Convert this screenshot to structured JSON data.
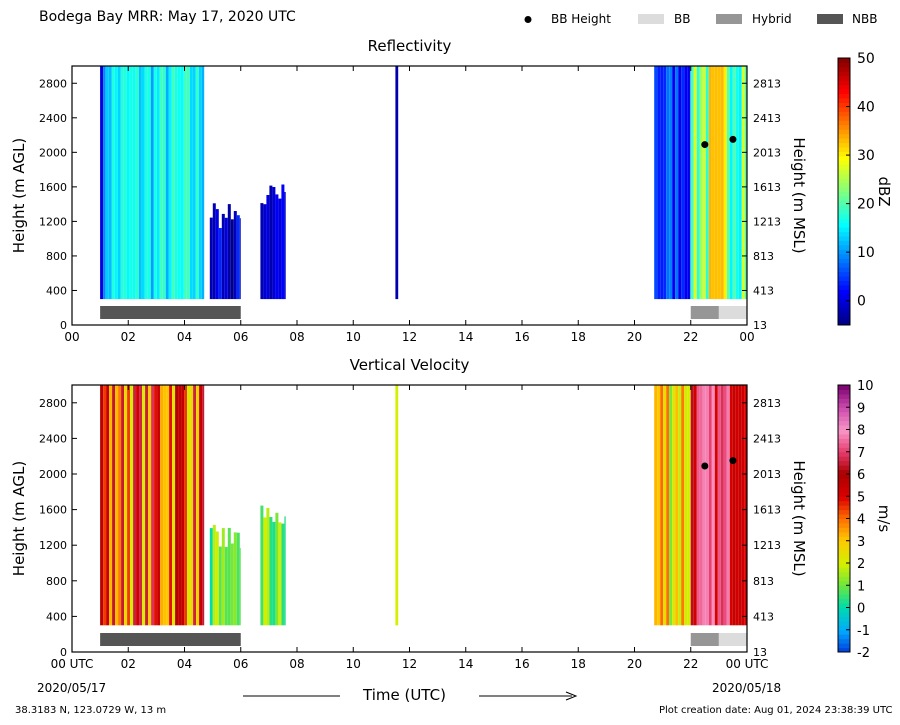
{
  "header": {
    "title": "Bodega Bay MRR:  May 17, 2020 UTC",
    "legend": [
      {
        "label": "BB Height",
        "marker": "dot",
        "color": "#000000"
      },
      {
        "label": "BB",
        "marker": "box",
        "color": "#dcdcdc"
      },
      {
        "label": "Hybrid",
        "marker": "box",
        "color": "#969696"
      },
      {
        "label": "NBB",
        "marker": "box",
        "color": "#555555"
      }
    ]
  },
  "chart_data": [
    {
      "type": "heatmap",
      "title": "Reflectivity",
      "xlabel": "",
      "ylabel": "Height (m AGL)",
      "ylabel_right": "Height (m MSL)",
      "x_ticks": [
        "00",
        "02",
        "04",
        "06",
        "08",
        "10",
        "12",
        "14",
        "16",
        "18",
        "20",
        "22",
        "00"
      ],
      "y_ticks": [
        "0",
        "400",
        "800",
        "1200",
        "1600",
        "2000",
        "2400",
        "2800"
      ],
      "y_ticks_right": [
        "13",
        "413",
        "813",
        "1213",
        "1613",
        "2013",
        "2413",
        "2813"
      ],
      "xlim": [
        0,
        24
      ],
      "ylim": [
        0,
        3000
      ],
      "colorbar": {
        "label": "dBZ",
        "range": [
          -5,
          50
        ],
        "ticks": [
          "0",
          "10",
          "20",
          "30",
          "40",
          "50"
        ]
      },
      "bb_height_points": [
        {
          "x": 22.5,
          "y": 2090
        },
        {
          "x": 23.5,
          "y": 2150
        }
      ],
      "bb_type_segments": [
        {
          "type": "NBB",
          "start": 1.0,
          "end": 6.0
        },
        {
          "type": "Hybrid",
          "start": 22.0,
          "end": 23.0
        },
        {
          "type": "BB",
          "start": 23.0,
          "end": 24.0
        }
      ],
      "echo_regions": [
        {
          "start": 1.0,
          "end": 1.2,
          "top": 3000,
          "level": "0 to 10"
        },
        {
          "start": 1.2,
          "end": 4.7,
          "top": 3000,
          "level": "10 to 20"
        },
        {
          "start": 4.9,
          "end": 6.0,
          "top": 1300,
          "level": "-5 to 5"
        },
        {
          "start": 6.7,
          "end": 7.6,
          "top": 1500,
          "level": "-5 to 5"
        },
        {
          "start": 11.5,
          "end": 11.6,
          "top": 3000,
          "level": "-5 to 5"
        },
        {
          "start": 20.7,
          "end": 22.0,
          "top": 3000,
          "level": "0 to 10"
        },
        {
          "start": 22.0,
          "end": 24.0,
          "top": 3000,
          "level": "15 to 35"
        }
      ]
    },
    {
      "type": "heatmap",
      "title": "Vertical Velocity",
      "xlabel": "Time (UTC)",
      "ylabel": "Height (m AGL)",
      "ylabel_right": "Height (m MSL)",
      "x_ticks": [
        "00 UTC",
        "02",
        "04",
        "06",
        "08",
        "10",
        "12",
        "14",
        "16",
        "18",
        "20",
        "22",
        "00 UTC"
      ],
      "x_date_start": "2020/05/17",
      "x_date_end": "2020/05/18",
      "y_ticks": [
        "0",
        "400",
        "800",
        "1200",
        "1600",
        "2000",
        "2400",
        "2800"
      ],
      "y_ticks_right": [
        "13",
        "413",
        "813",
        "1213",
        "1613",
        "2013",
        "2413",
        "2813"
      ],
      "xlim": [
        0,
        24
      ],
      "ylim": [
        0,
        3000
      ],
      "colorbar": {
        "label": "m/s",
        "range": [
          -2,
          10
        ],
        "ticks": [
          "-2",
          "-1",
          "0",
          "1",
          "2",
          "3",
          "4",
          "5",
          "6",
          "7",
          "8",
          "9",
          "10"
        ]
      },
      "bb_height_points": [
        {
          "x": 22.5,
          "y": 2090
        },
        {
          "x": 23.5,
          "y": 2150
        }
      ],
      "bb_type_segments": [
        {
          "type": "NBB",
          "start": 1.0,
          "end": 6.0
        },
        {
          "type": "Hybrid",
          "start": 22.0,
          "end": 23.0
        },
        {
          "type": "BB",
          "start": 23.0,
          "end": 24.0
        }
      ],
      "echo_regions": [
        {
          "start": 1.0,
          "end": 4.7,
          "top": 3000,
          "level": "2 to 7"
        },
        {
          "start": 4.9,
          "end": 6.0,
          "top": 1300,
          "level": "0 to 2"
        },
        {
          "start": 6.7,
          "end": 7.6,
          "top": 1500,
          "level": "0 to 2"
        },
        {
          "start": 11.5,
          "end": 11.6,
          "top": 3000,
          "level": "2"
        },
        {
          "start": 20.7,
          "end": 22.0,
          "top": 3000,
          "level": "1 to 5"
        },
        {
          "start": 22.0,
          "end": 24.0,
          "top": 3000,
          "level": "5 to 8"
        }
      ]
    }
  ],
  "footer": {
    "location": "38.3183 N, 123.0729 W, 13 m",
    "creation": "Plot creation date: Aug 01, 2024 23:38:39 UTC"
  }
}
